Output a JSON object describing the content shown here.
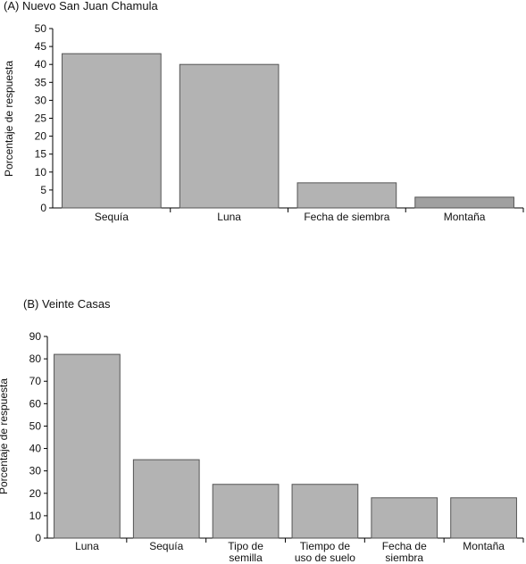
{
  "chart_data": [
    {
      "type": "bar",
      "title": "(A) Nuevo San Juan Chamula",
      "ylabel": "Porcentaje de respuesta",
      "xlabel": "",
      "ylim": [
        0,
        50
      ],
      "yticks": [
        0,
        5,
        10,
        15,
        20,
        25,
        30,
        35,
        40,
        45,
        50
      ],
      "categories": [
        "Sequía",
        "Luna",
        "Fecha de siembra",
        "Montaña"
      ],
      "values": [
        43,
        40,
        7,
        3
      ],
      "bar_colors": [
        "#b3b3b3",
        "#b3b3b3",
        "#b3b3b3",
        "#a0a0a0"
      ],
      "grid": false,
      "legend": "none"
    },
    {
      "type": "bar",
      "title": "(B) Veinte Casas",
      "ylabel": "Porcentaje de respuesta",
      "xlabel": "",
      "ylim": [
        0,
        90
      ],
      "yticks": [
        0,
        10,
        20,
        30,
        40,
        50,
        60,
        70,
        80,
        90
      ],
      "categories": [
        "Luna",
        "Sequía",
        "Tipo de\nsemilla",
        "Tiempo de\nuso de suelo",
        "Fecha de\nsiembra",
        "Montaña"
      ],
      "values": [
        82,
        35,
        24,
        24,
        18,
        18
      ],
      "bar_colors": [
        "#b3b3b3",
        "#b3b3b3",
        "#b3b3b3",
        "#b3b3b3",
        "#b3b3b3",
        "#b3b3b3"
      ],
      "grid": false,
      "legend": "none"
    }
  ]
}
